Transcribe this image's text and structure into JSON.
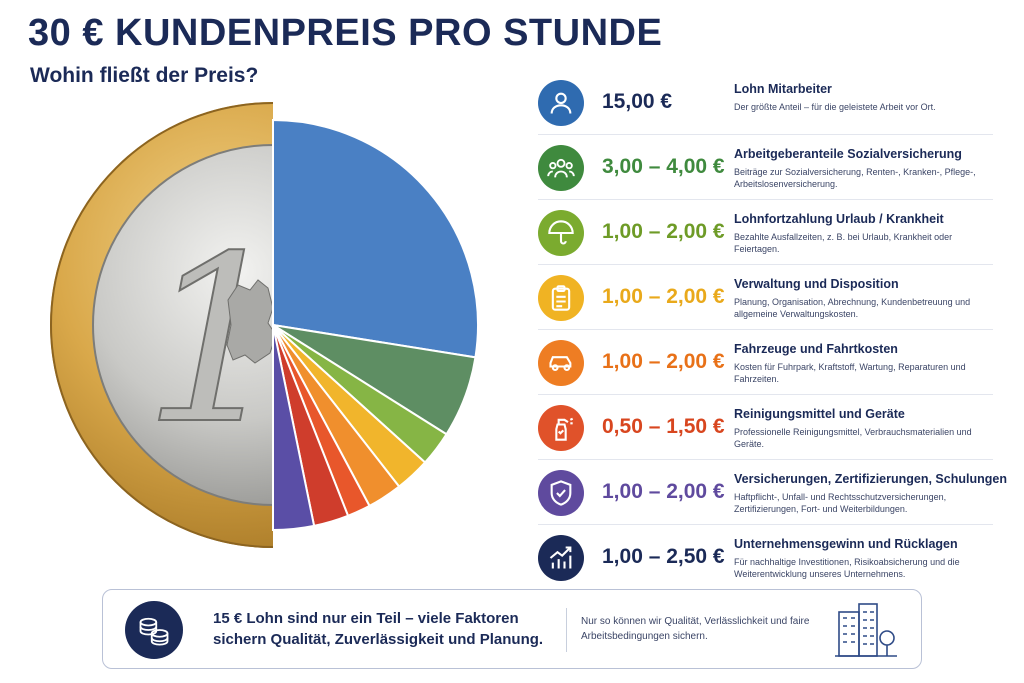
{
  "header": {
    "title": "30 € KUNDENPREIS PRO STUNDE",
    "subtitle": "Wohin fließt der Preis?"
  },
  "coin": {
    "numeral": "1"
  },
  "items": [
    {
      "price": "15,00 €",
      "label": "Lohn Mitarbeiter",
      "desc": "Der größte Anteil – für die geleistete Arbeit vor Ort.",
      "color": "#2f6bb0",
      "icon": "person-icon"
    },
    {
      "price": "3,00 – 4,00 €",
      "label": "Arbeitgeberanteile Sozialversicherung",
      "desc": "Beiträge zur Sozialversicherung, Renten-, Kranken-, Pflege-, Arbeitslosenversicherung.",
      "color": "#3f8a3e",
      "icon": "group-icon"
    },
    {
      "price": "1,00 – 2,00 €",
      "label": "Lohnfortzahlung Urlaub / Krankheit",
      "desc": "Bezahlte Ausfallzeiten, z. B. bei Urlaub, Krankheit oder Feiertagen.",
      "color": "#7bab2f",
      "icon": "umbrella-icon"
    },
    {
      "price": "1,00 – 2,00 €",
      "label": "Verwaltung und Disposition",
      "desc": "Planung, Organisation, Abrechnung, Kundenbetreuung und allgemeine Verwaltungskosten.",
      "color": "#f0b323",
      "icon": "clipboard-icon"
    },
    {
      "price": "1,00 – 2,00 €",
      "label": "Fahrzeuge und Fahrtkosten",
      "desc": "Kosten für Fuhrpark, Kraftstoff, Wartung, Reparaturen und Fahrzeiten.",
      "color": "#ee7d23",
      "icon": "car-icon"
    },
    {
      "price": "0,50 – 1,50 €",
      "label": "Reinigungsmittel und Geräte",
      "desc": "Professionelle Reinigungsmittel, Verbrauchsmaterialien und Geräte.",
      "color": "#e0522a",
      "icon": "spray-bottle-icon"
    },
    {
      "price": "1,00 – 2,00 €",
      "label": "Versicherungen, Zertifizierungen, Schulungen",
      "desc": "Haftpflicht-, Unfall- und Rechtsschutzversicherungen, Zertifizierungen, Fort- und Weiterbildungen.",
      "color": "#5f4a9e",
      "icon": "shield-check-icon"
    },
    {
      "price": "1,00 – 2,50 €",
      "label": "Unternehmensgewinn und Rücklagen",
      "desc": "Für nachhaltige Investitionen, Risikoabsicherung und die Weiterentwicklung unseres Unternehmens.",
      "color": "#1b2a57",
      "icon": "growth-chart-icon"
    }
  ],
  "pie": {
    "colors": [
      "#4a80c4",
      "#5e8e63",
      "#86b545",
      "#f1b52c",
      "#f08f2d",
      "#e8572b",
      "#cf3d2c",
      "#5a4ea6"
    ],
    "slice_shares": [
      15,
      3.5,
      1.5,
      1.5,
      1.5,
      1,
      1.5,
      1.75
    ]
  },
  "footer": {
    "main": "15 € Lohn sind nur ein Teil – viele Faktoren sichern Qualität, Zuverlässigkeit und Planung.",
    "side": "Nur so können wir Qualität, Verlässlichkeit und faire Arbeitsbedingungen sichern.",
    "coins_icon": "coin-stack-icon",
    "building_icon": "building-icon"
  }
}
